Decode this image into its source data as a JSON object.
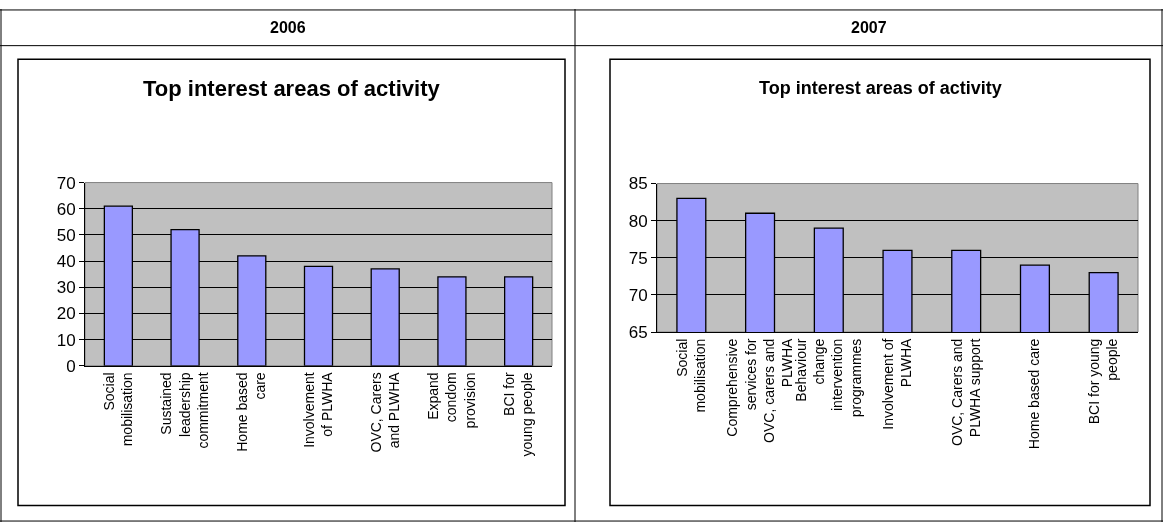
{
  "chart_data": [
    {
      "type": "bar",
      "subtitle": "2006",
      "title": "Top interest areas of activity",
      "categories": [
        "Social mobilisation",
        "Sustained leadership commitment",
        "Home based care",
        "Involvement of PLWHA",
        "OVC, Carers and PLWHA",
        "Expand condom provision",
        "BCI for young people"
      ],
      "values": [
        61,
        52,
        42,
        38,
        37,
        34,
        34
      ],
      "color": "#9999ff",
      "ylim": [
        0,
        70
      ],
      "yticks": [
        0,
        10,
        20,
        30,
        40,
        50,
        60,
        70
      ],
      "grid": "y"
    },
    {
      "type": "bar",
      "subtitle": "2007",
      "title": "Top interest areas of activity",
      "categories": [
        "Social mobilisation",
        "Comprehensive services for OVC, carers and PLWHA",
        "Behaviour change intervention programmes",
        "Involvement of PLWHA",
        "OVC, Carers and PLWHA support",
        "Home based care",
        "BCI for young people"
      ],
      "values": [
        83,
        81,
        79,
        76,
        76,
        74,
        73
      ],
      "color": "#9999ff",
      "ylim": [
        65,
        85
      ],
      "yticks": [
        65,
        70,
        75,
        80,
        85
      ],
      "grid": "y"
    }
  ]
}
